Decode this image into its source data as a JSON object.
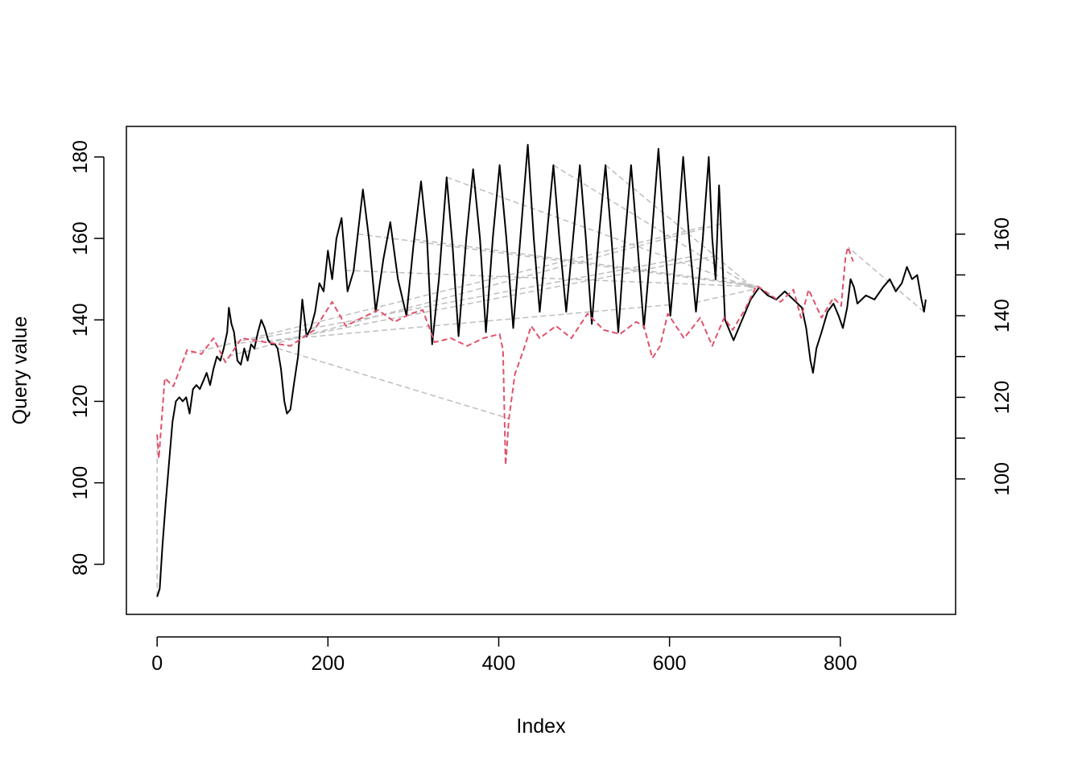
{
  "chart_data": {
    "type": "line",
    "xlabel": "Index",
    "ylabel": "Query value",
    "xlim": [
      -36,
      935
    ],
    "ylim": [
      67.7,
      187.5
    ],
    "y2lim": [
      66.8,
      186.4
    ],
    "xticks": [
      0,
      200,
      400,
      600,
      800
    ],
    "yticks": [
      80,
      100,
      120,
      140,
      160,
      180
    ],
    "y2ticks": [
      100,
      120,
      140,
      160
    ],
    "y2minor_ticks": [
      110,
      130,
      150
    ],
    "series": [
      {
        "color": "#000000",
        "line_style": "solid",
        "axis": "y",
        "x": [
          0,
          3,
          6,
          10,
          14,
          18,
          22,
          26,
          30,
          34,
          38,
          42,
          46,
          50,
          54,
          58,
          62,
          66,
          70,
          74,
          78,
          82,
          84,
          87,
          90,
          94,
          98,
          102,
          106,
          110,
          114,
          118,
          122,
          126,
          130,
          134,
          138,
          141,
          145,
          149,
          152,
          156,
          160,
          165,
          170,
          175,
          180,
          185,
          190,
          195,
          200,
          205,
          210,
          216,
          223,
          230,
          241,
          248,
          256,
          265,
          273,
          282,
          292,
          300,
          309,
          316,
          322,
          330,
          339,
          346,
          353,
          362,
          370,
          378,
          385,
          393,
          401,
          409,
          417,
          426,
          434,
          441,
          448,
          456,
          464,
          471,
          479,
          487,
          495,
          502,
          509,
          517,
          525,
          532,
          540,
          547,
          555,
          562,
          570,
          579,
          587,
          594,
          601,
          609,
          616,
          623,
          631,
          639,
          646,
          650,
          654,
          658,
          665,
          675,
          685,
          695,
          705,
          715,
          725,
          735,
          745,
          755,
          760,
          765,
          768,
          772,
          778,
          785,
          792,
          798,
          803,
          808,
          812,
          816,
          820,
          830,
          840,
          850,
          858,
          865,
          872,
          878,
          884,
          890,
          895,
          898,
          900
        ],
        "values": [
          72,
          74,
          84,
          95,
          105,
          115,
          120,
          121,
          120,
          121,
          117,
          123,
          124,
          123,
          125,
          127,
          124,
          128,
          131,
          130,
          133,
          137,
          143,
          139,
          137,
          130,
          129,
          133,
          130,
          134,
          133,
          137,
          140,
          138,
          135,
          134,
          134,
          133,
          128,
          120,
          117,
          118,
          124,
          131,
          145,
          136,
          138,
          142,
          149,
          147,
          157,
          150,
          160,
          165,
          147,
          152,
          172,
          160,
          142,
          155,
          164,
          150,
          141,
          158,
          174,
          160,
          134,
          150,
          175,
          158,
          136,
          160,
          177,
          160,
          137,
          160,
          178,
          160,
          138,
          162,
          183,
          160,
          142,
          160,
          178,
          160,
          142,
          160,
          178,
          160,
          139,
          160,
          178,
          160,
          137,
          158,
          178,
          160,
          138,
          160,
          182,
          160,
          141,
          160,
          180,
          160,
          142,
          160,
          180,
          160,
          150,
          173,
          140,
          135,
          140,
          145,
          148,
          146,
          145,
          147,
          145,
          143,
          138,
          130,
          127,
          133,
          137,
          142,
          144,
          141,
          138,
          143,
          150,
          148,
          144,
          146,
          145,
          148,
          150,
          147,
          149,
          153,
          150,
          151,
          145,
          142,
          145
        ]
      },
      {
        "color": "#DF536B",
        "line_style": "dashed",
        "axis": "y2",
        "x": [
          0,
          2,
          9,
          19,
          28,
          35,
          52,
          66,
          80,
          99,
          127,
          156,
          184,
          205,
          221,
          240,
          259,
          278,
          297,
          311,
          325,
          344,
          363,
          382,
          401,
          405,
          408,
          412,
          419,
          429,
          438,
          448,
          467,
          485,
          504,
          523,
          542,
          561,
          570,
          580,
          589,
          598,
          617,
          636,
          650,
          664,
          674,
          688,
          702,
          716,
          730,
          745,
          754,
          763,
          778,
          792,
          801,
          806,
          809,
          815
        ],
        "values": [
          110.9,
          105,
          124.7,
          122.7,
          127.6,
          131.6,
          130.6,
          134.5,
          128.6,
          134.5,
          133.5,
          132.6,
          136.5,
          143.4,
          137.5,
          139.5,
          141.4,
          138.5,
          140.5,
          141.4,
          133.5,
          134.5,
          132.6,
          134.5,
          135.5,
          131.6,
          103.4,
          114.8,
          125.7,
          131.6,
          137.5,
          134.5,
          137.5,
          134.5,
          140.5,
          136.5,
          135.5,
          138.5,
          137.5,
          129.6,
          132.6,
          140.5,
          134.5,
          139.5,
          132.6,
          139.5,
          136.5,
          141.4,
          147.4,
          145.4,
          143.4,
          146.4,
          139.5,
          146.4,
          139.5,
          144.4,
          142.4,
          154.3,
          156.8,
          153.3
        ]
      }
    ],
    "alignment": {
      "color": "#BEBEBE",
      "matches": [
        [
          0,
          0
        ],
        [
          141,
          412
        ],
        [
          301,
          702
        ],
        [
          464,
          700
        ],
        [
          235,
          704
        ],
        [
          221,
          704
        ],
        [
          339,
          700
        ],
        [
          525,
          700
        ],
        [
          630,
          700
        ],
        [
          640,
          33
        ],
        [
          660,
          85
        ],
        [
          625,
          110
        ],
        [
          655,
          130
        ],
        [
          600,
          95
        ],
        [
          898,
          809
        ]
      ]
    }
  }
}
